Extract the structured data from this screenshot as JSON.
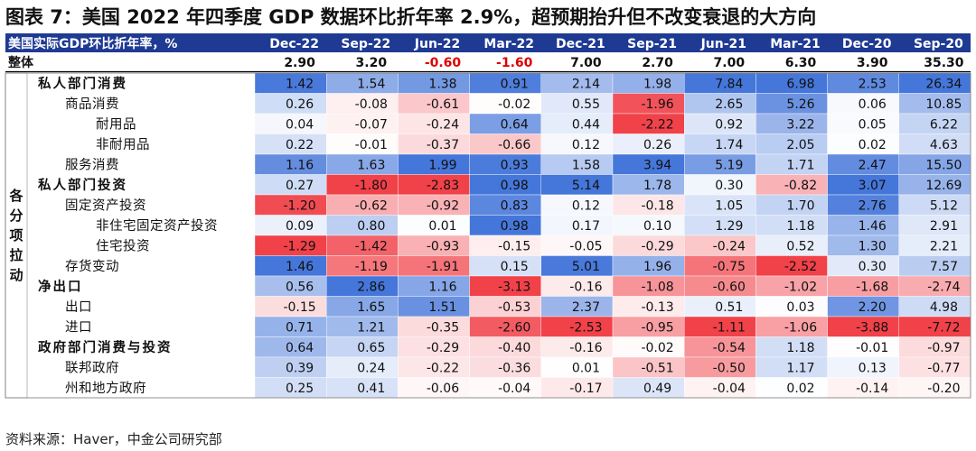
{
  "title": "图表 7：美国 2022 年四季度 GDP 数据环比折年率 2.9%，超预期抬升但不改变衰退的大方向",
  "source": "资料来源：Haver，中金公司研究部",
  "chart_data": {
    "type": "heatmap",
    "header_label": "美国实际GDP环比折年率，%",
    "columns": [
      "Dec-22",
      "Sep-22",
      "Jun-22",
      "Mar-22",
      "Dec-21",
      "Sep-21",
      "Jun-21",
      "Mar-21",
      "Dec-20",
      "Sep-20"
    ],
    "total": {
      "label": "整体",
      "values": [
        2.9,
        3.2,
        -0.6,
        -1.6,
        7.0,
        2.7,
        7.0,
        6.3,
        3.9,
        35.3
      ],
      "negative_color": "#e00000"
    },
    "group_label": "各分项拉动",
    "rows": [
      {
        "label": "私人部门消费",
        "level": 0,
        "values": [
          1.42,
          1.54,
          1.38,
          0.91,
          2.14,
          1.98,
          7.84,
          6.98,
          2.53,
          26.34
        ]
      },
      {
        "label": "商品消费",
        "level": 1,
        "values": [
          0.26,
          -0.08,
          -0.61,
          -0.02,
          0.55,
          -1.96,
          2.65,
          5.26,
          0.06,
          10.85
        ]
      },
      {
        "label": "耐用品",
        "level": 2,
        "values": [
          0.04,
          -0.07,
          -0.24,
          0.64,
          0.44,
          -2.22,
          0.92,
          3.22,
          0.05,
          6.22
        ]
      },
      {
        "label": "非耐用品",
        "level": 2,
        "values": [
          0.22,
          -0.01,
          -0.37,
          -0.66,
          0.12,
          0.26,
          1.74,
          2.05,
          0.02,
          4.63
        ]
      },
      {
        "label": "服务消费",
        "level": 1,
        "values": [
          1.16,
          1.63,
          1.99,
          0.93,
          1.58,
          3.94,
          5.19,
          1.71,
          2.47,
          15.5
        ]
      },
      {
        "label": "私人部门投资",
        "level": 0,
        "values": [
          0.27,
          -1.8,
          -2.83,
          0.98,
          5.14,
          1.78,
          0.3,
          -0.82,
          3.07,
          12.69
        ]
      },
      {
        "label": "固定资产投资",
        "level": 1,
        "values": [
          -1.2,
          -0.62,
          -0.92,
          0.83,
          0.12,
          -0.18,
          1.05,
          1.7,
          2.76,
          5.12
        ]
      },
      {
        "label": "非住宅固定资产投资",
        "level": 2,
        "values": [
          0.09,
          0.8,
          0.01,
          0.98,
          0.17,
          0.1,
          1.29,
          1.18,
          1.46,
          2.91
        ]
      },
      {
        "label": "住宅投资",
        "level": 2,
        "values": [
          -1.29,
          -1.42,
          -0.93,
          -0.15,
          -0.05,
          -0.29,
          -0.24,
          0.52,
          1.3,
          2.21
        ]
      },
      {
        "label": "存货变动",
        "level": 1,
        "values": [
          1.46,
          -1.19,
          -1.91,
          0.15,
          5.01,
          1.96,
          -0.75,
          -2.52,
          0.3,
          7.57
        ]
      },
      {
        "label": "净出口",
        "level": 0,
        "values": [
          0.56,
          2.86,
          1.16,
          -3.13,
          -0.16,
          -1.08,
          -0.6,
          -1.02,
          -1.68,
          -2.74
        ]
      },
      {
        "label": "出口",
        "level": 1,
        "values": [
          -0.15,
          1.65,
          1.51,
          -0.53,
          2.37,
          -0.13,
          0.51,
          0.03,
          2.2,
          4.98
        ]
      },
      {
        "label": "进口",
        "level": 1,
        "values": [
          0.71,
          1.21,
          -0.35,
          -2.6,
          -2.53,
          -0.95,
          -1.11,
          -1.06,
          -3.88,
          -7.72
        ]
      },
      {
        "label": "政府部门消费与投资",
        "level": 0,
        "values": [
          0.64,
          0.65,
          -0.29,
          -0.4,
          -0.16,
          -0.02,
          -0.54,
          1.18,
          -0.01,
          -0.97
        ]
      },
      {
        "label": "联邦政府",
        "level": 1,
        "values": [
          0.39,
          0.24,
          -0.22,
          -0.36,
          0.01,
          -0.51,
          -0.5,
          1.17,
          0.13,
          -0.77
        ]
      },
      {
        "label": "州和地方政府",
        "level": 1,
        "values": [
          0.25,
          0.41,
          -0.06,
          -0.04,
          -0.17,
          0.49,
          -0.04,
          0.02,
          -0.14,
          -0.2
        ]
      }
    ],
    "colors": {
      "header_bg": "#1f3a93",
      "header_text": "#ffffff",
      "positive": "#3b6fd8",
      "negative": "#f0373f",
      "neutral": "#ffffff"
    }
  }
}
